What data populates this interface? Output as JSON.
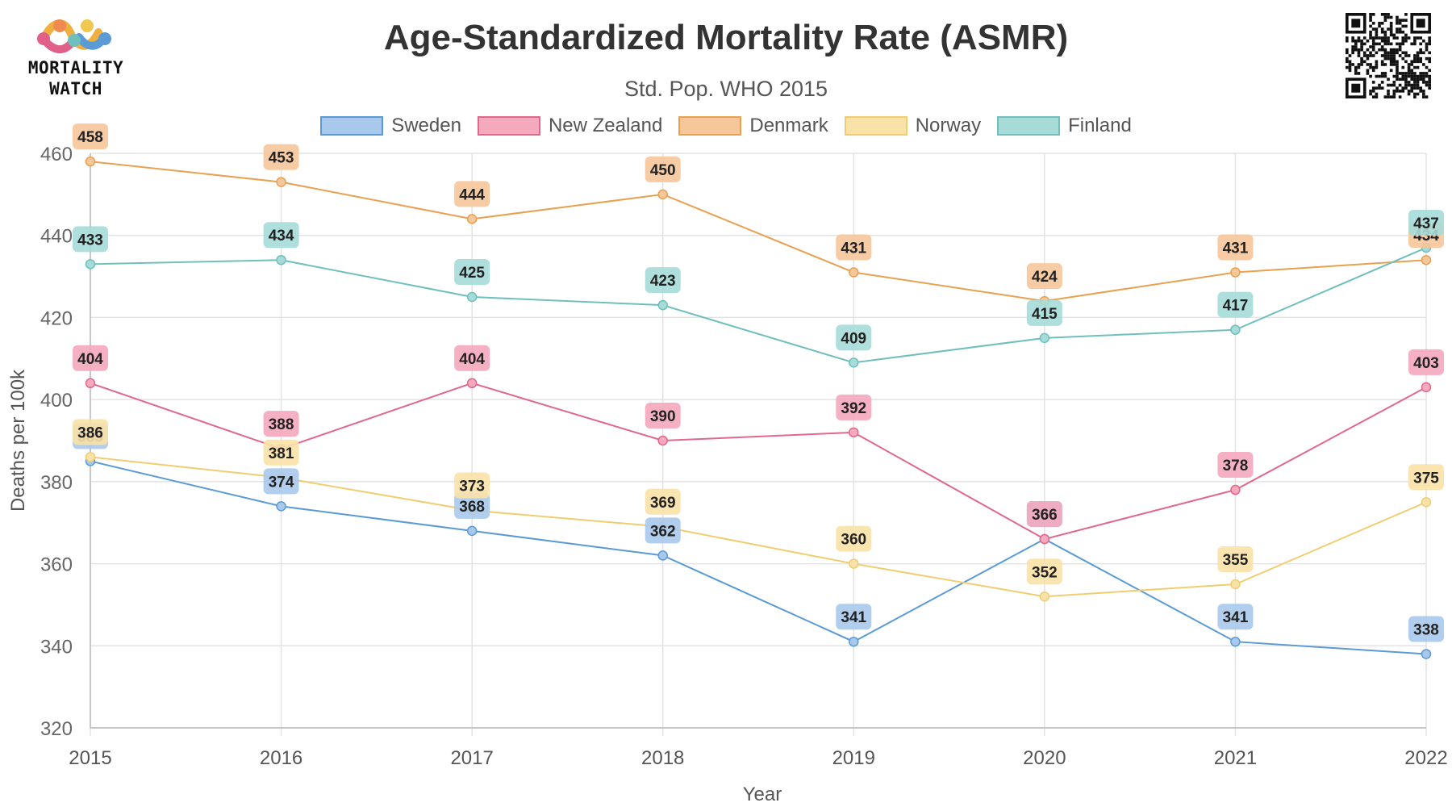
{
  "brand": {
    "line1": "MORTALITY",
    "line2": "WATCH",
    "logo_icon": "mortality-watch-logo"
  },
  "qr_icon": "qr-code-icon",
  "chart_data": {
    "type": "line",
    "title": "Age-Standardized Mortality Rate (ASMR)",
    "subtitle": "Std. Pop. WHO 2015",
    "xlabel": "Year",
    "ylabel": "Deaths per 100k",
    "x": [
      "2015",
      "2016",
      "2017",
      "2018",
      "2019",
      "2020",
      "2021",
      "2022"
    ],
    "ylim": [
      320,
      460
    ],
    "yticks": [
      320,
      340,
      360,
      380,
      400,
      420,
      440,
      460
    ],
    "legend_position": "top",
    "grid": true,
    "series": [
      {
        "name": "Sweden",
        "color": "#5b9bd5",
        "fill": "#a8c9ec",
        "values": [
          385,
          374,
          368,
          362,
          341,
          366,
          341,
          338
        ]
      },
      {
        "name": "New Zealand",
        "color": "#e0688c",
        "fill": "#f4a9bd",
        "values": [
          404,
          388,
          404,
          390,
          392,
          366,
          378,
          403
        ]
      },
      {
        "name": "Denmark",
        "color": "#e9a050",
        "fill": "#f6c79a",
        "values": [
          458,
          453,
          444,
          450,
          431,
          424,
          431,
          434
        ]
      },
      {
        "name": "Norway",
        "color": "#f0cd70",
        "fill": "#f9e2a8",
        "values": [
          386,
          381,
          373,
          369,
          360,
          352,
          355,
          375
        ]
      },
      {
        "name": "Finland",
        "color": "#6fc0bd",
        "fill": "#a6dbd8",
        "values": [
          433,
          434,
          425,
          423,
          409,
          415,
          417,
          437
        ]
      }
    ]
  }
}
